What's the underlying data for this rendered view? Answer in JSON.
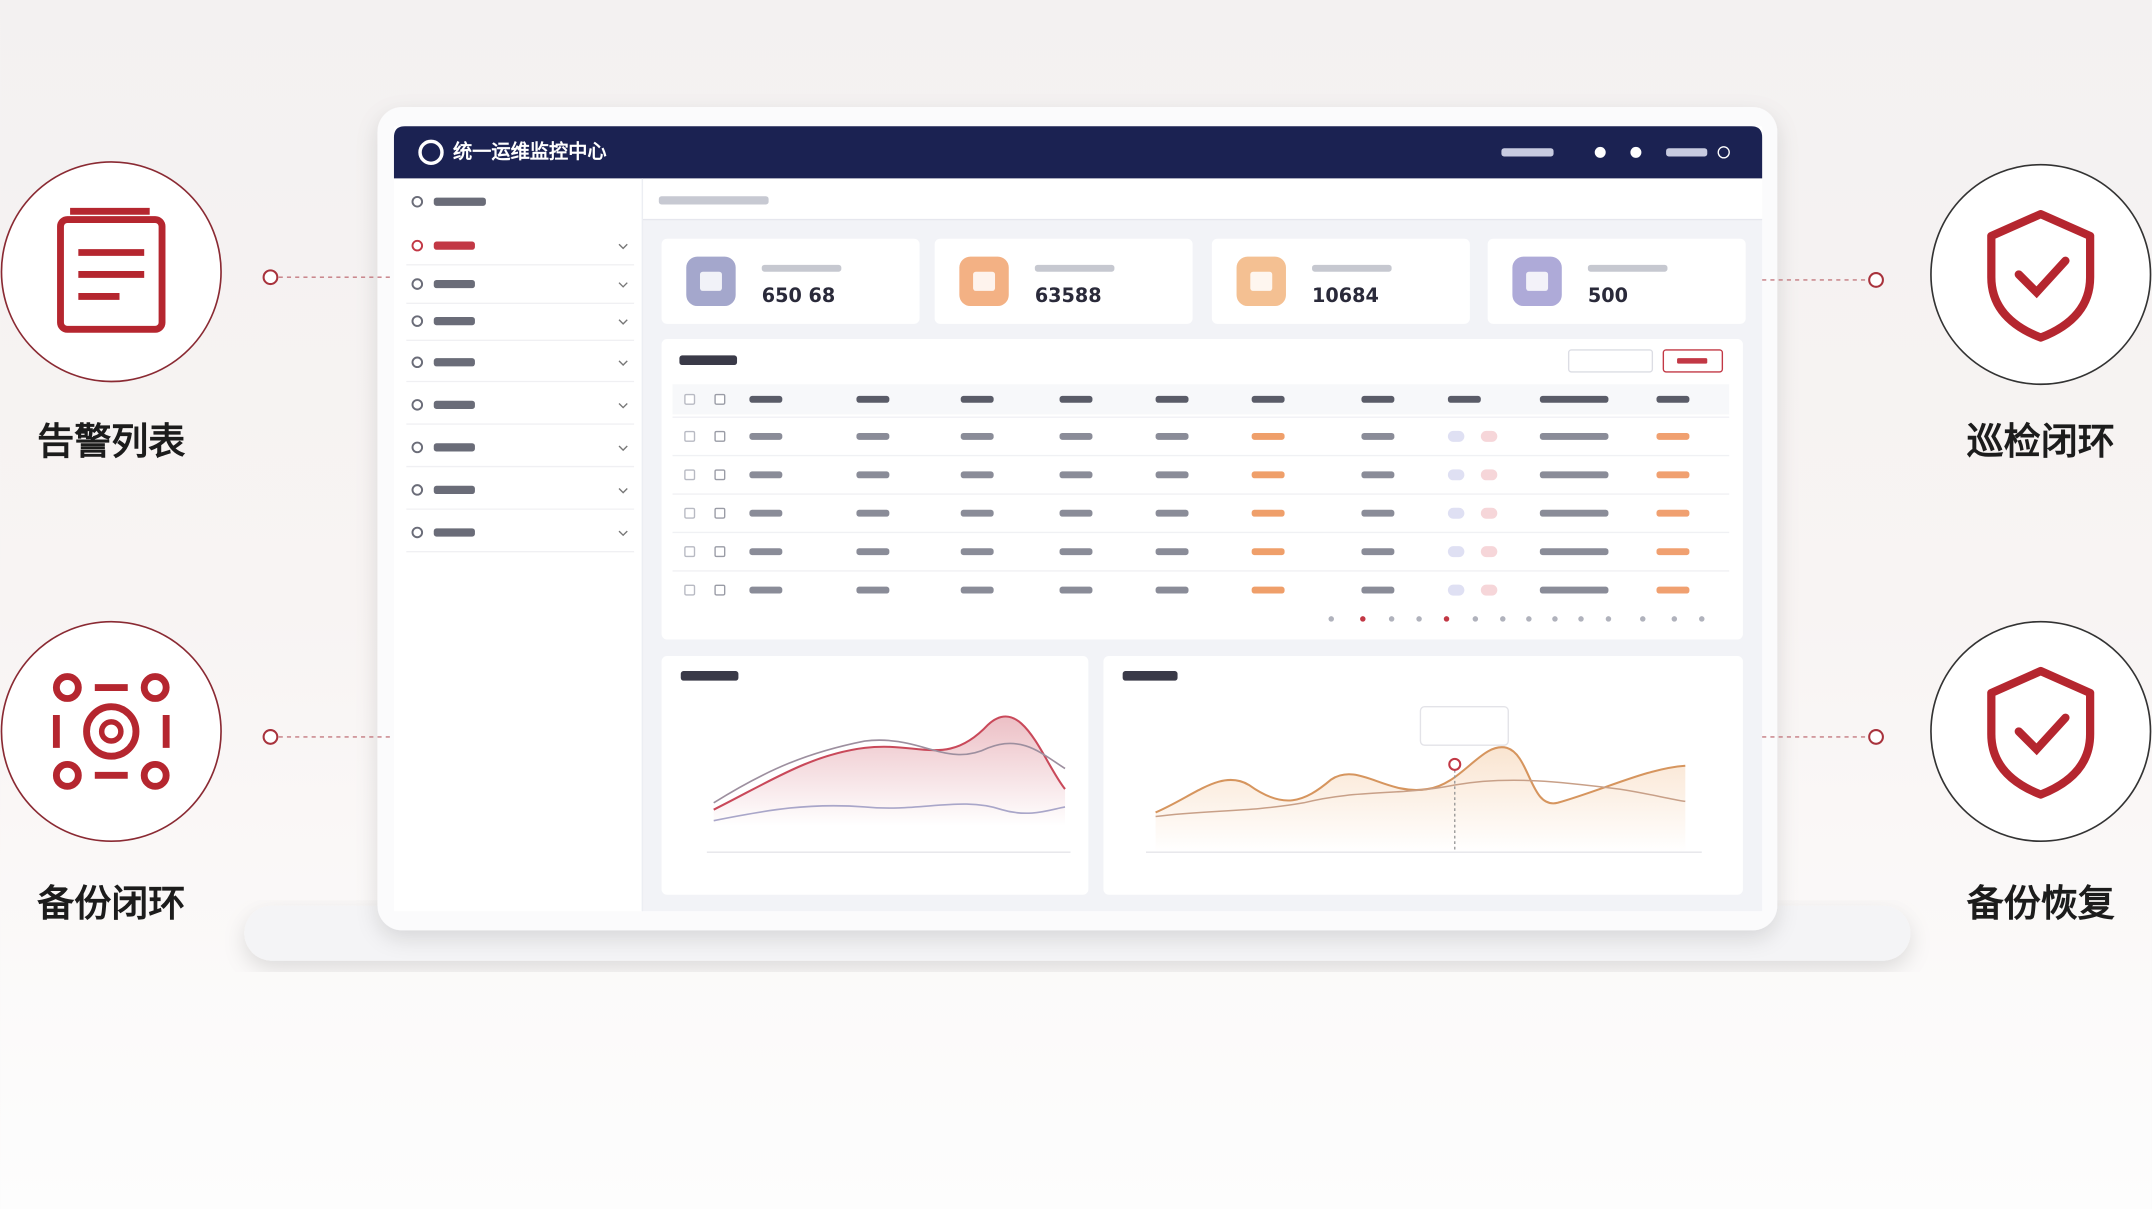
{
  "header": {
    "title": "统一运维监控中心"
  },
  "features": [
    {
      "label": "告警列表"
    },
    {
      "label": "备份闭环"
    },
    {
      "label": "巡检闭环"
    },
    {
      "label": "备份恢复"
    }
  ],
  "stats": [
    {
      "value": "650 68"
    },
    {
      "value": "63588"
    },
    {
      "value": "10684"
    },
    {
      "value": "500"
    }
  ]
}
